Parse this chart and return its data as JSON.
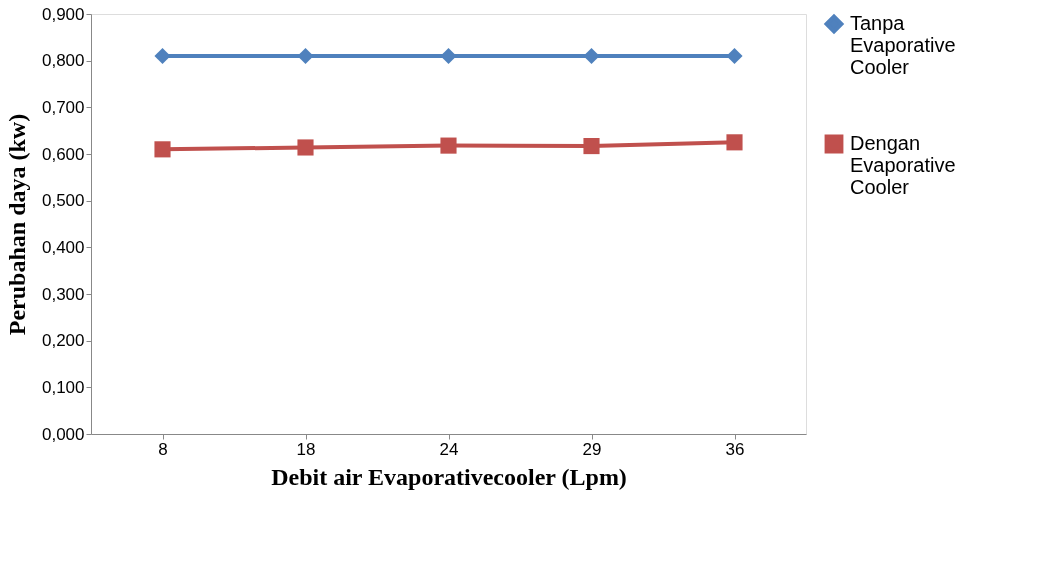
{
  "chart_data": {
    "type": "line",
    "xlabel": "Debit air Evaporativecooler (Lpm)",
    "ylabel": "Perubahan daya (kw)",
    "categories": [
      "8",
      "18",
      "24",
      "29",
      "36"
    ],
    "series": [
      {
        "name": "Tanpa Evaporative Cooler",
        "color": "#4f81bd",
        "marker": "diamond",
        "values": [
          0.81,
          0.81,
          0.81,
          0.81,
          0.81
        ]
      },
      {
        "name": "Dengan Evaporative Cooler",
        "color": "#c0504d",
        "marker": "square",
        "values": [
          0.61,
          0.614,
          0.618,
          0.617,
          0.625
        ]
      }
    ],
    "ylim": [
      0,
      0.9
    ],
    "yticks": [
      {
        "value": 0,
        "label": "0,000"
      },
      {
        "value": 0.1,
        "label": "0,100"
      },
      {
        "value": 0.2,
        "label": "0,200"
      },
      {
        "value": 0.3,
        "label": "0,300"
      },
      {
        "value": 0.4,
        "label": "0,400"
      },
      {
        "value": 0.5,
        "label": "0,500"
      },
      {
        "value": 0.6,
        "label": "0,600"
      },
      {
        "value": 0.7,
        "label": "0,700"
      },
      {
        "value": 0.8,
        "label": "0,800"
      },
      {
        "value": 0.9,
        "label": "0,900"
      }
    ],
    "grid": false,
    "legend": "right",
    "line_style": "solid"
  }
}
